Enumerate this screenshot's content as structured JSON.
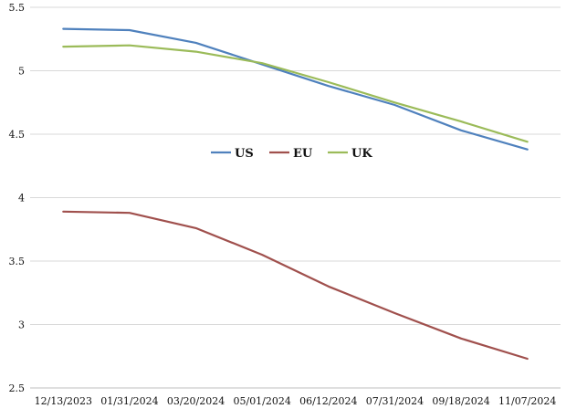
{
  "chart_data": {
    "type": "line",
    "title": "",
    "xlabel": "",
    "ylabel": "",
    "categories": [
      "12/13/2023",
      "01/31/2024",
      "03/20/2024",
      "05/01/2024",
      "06/12/2024",
      "07/31/2024",
      "09/18/2024",
      "11/07/2024"
    ],
    "ylim": [
      2.5,
      5.5
    ],
    "yticks": [
      "2.5",
      "3",
      "3.5",
      "4",
      "4.5",
      "5",
      "5.5"
    ],
    "grid": "horizontal",
    "legend_position": "center",
    "series": [
      {
        "name": "US",
        "color": "#4F81BD",
        "values": [
          5.33,
          5.32,
          5.22,
          5.05,
          4.88,
          4.73,
          4.53,
          4.38
        ]
      },
      {
        "name": "EU",
        "color": "#A0504D",
        "values": [
          3.89,
          3.88,
          3.76,
          3.55,
          3.3,
          3.09,
          2.89,
          2.73
        ]
      },
      {
        "name": "UK",
        "color": "#9BBB59",
        "values": [
          5.19,
          5.2,
          5.15,
          5.06,
          4.91,
          4.75,
          4.6,
          4.44
        ]
      }
    ]
  }
}
